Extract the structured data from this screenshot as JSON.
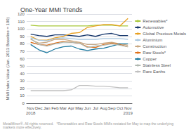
{
  "chart_data": {
    "type": "line",
    "title": "One-Year MMI Trends",
    "ylabel": "MMI Index Value (Jan. 2013 Baseline = 100)",
    "categories": [
      "Nov\n2018",
      "Dec",
      "Jan",
      "Feb",
      "Mar",
      "Apr",
      "May",
      "Jun",
      "Jul",
      "Aug",
      "Sep",
      "Oct",
      "Nov\n2019"
    ],
    "series": [
      {
        "name": "Renewables*",
        "color": "#a8c83a",
        "values": [
          105,
          104,
          104,
          104,
          104,
          104,
          104,
          104,
          105,
          105,
          105,
          104,
          104
        ]
      },
      {
        "name": "Automotive",
        "color": "#1a3a6e",
        "values": [
          93,
          91,
          90,
          92,
          92,
          91,
          90,
          92,
          90,
          93,
          94,
          91,
          91
        ]
      },
      {
        "name": "Global Precious Metals",
        "color": "#e8a020",
        "values": [
          90,
          85,
          85,
          88,
          90,
          94,
          95,
          102,
          104,
          106,
          106,
          104,
          114
        ]
      },
      {
        "name": "Aluminium",
        "color": "#aac8e0",
        "values": [
          88,
          85,
          84,
          87,
          88,
          87,
          86,
          86,
          86,
          87,
          87,
          87,
          86
        ]
      },
      {
        "name": "Construction",
        "color": "#c8a882",
        "values": [
          86,
          81,
          82,
          86,
          86,
          84,
          82,
          79,
          79,
          81,
          82,
          80,
          78
        ]
      },
      {
        "name": "Raw Steels*",
        "color": "#e07018",
        "values": [
          82,
          79,
          78,
          81,
          83,
          82,
          81,
          76,
          75,
          79,
          81,
          79,
          76
        ]
      },
      {
        "name": "Copper",
        "color": "#1e7aa0",
        "values": [
          79,
          72,
          68,
          73,
          76,
          77,
          73,
          71,
          73,
          74,
          77,
          80,
          80
        ]
      },
      {
        "name": "Stainless Steel",
        "color": "#b0b8b0",
        "values": [
          87,
          79,
          77,
          80,
          82,
          82,
          81,
          75,
          77,
          78,
          80,
          78,
          76
        ]
      },
      {
        "name": "Rare Earths",
        "color": "#c0c0c0",
        "values": [
          17,
          17,
          17,
          17,
          17,
          18,
          24,
          24,
          23,
          23,
          22,
          21,
          21
        ]
      }
    ],
    "ylim": [
      0,
      120
    ],
    "yticks": [
      0,
      10,
      20,
      30,
      40,
      50,
      60,
      70,
      80,
      90,
      100,
      110,
      120
    ],
    "grid": true,
    "legend": "right",
    "annotations": [
      "MetalMiner®. All rights reserved.   *Renewables and Raw Steels MMIs restated for May to map the underlying markets more effectively."
    ]
  }
}
